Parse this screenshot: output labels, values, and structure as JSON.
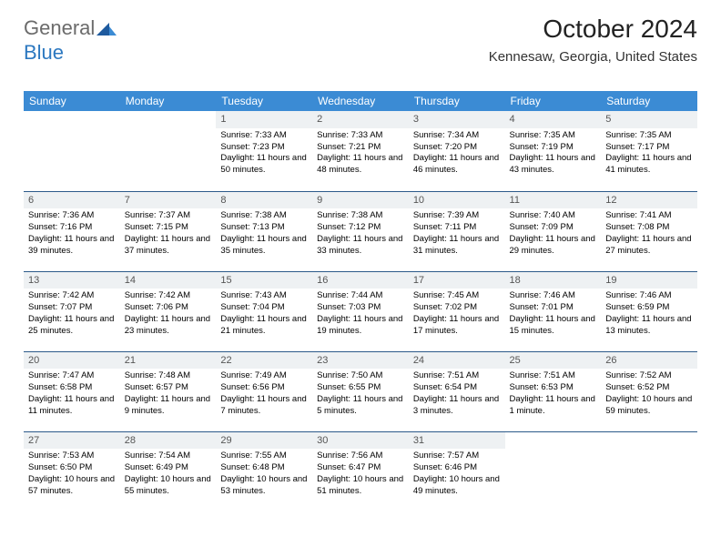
{
  "logo": {
    "part1": "General",
    "part2": "Blue"
  },
  "title": "October 2024",
  "location": "Kennesaw, Georgia, United States",
  "colors": {
    "header_bg": "#3b8bd4",
    "header_text": "#ffffff",
    "daynum_bg": "#eef1f3",
    "row_border": "#2c5a8a",
    "logo_gray": "#6b6b6b",
    "logo_blue": "#2c78c0"
  },
  "day_headers": [
    "Sunday",
    "Monday",
    "Tuesday",
    "Wednesday",
    "Thursday",
    "Friday",
    "Saturday"
  ],
  "weeks": [
    [
      null,
      null,
      {
        "n": "1",
        "sr": "Sunrise: 7:33 AM",
        "ss": "Sunset: 7:23 PM",
        "dl": "Daylight: 11 hours and 50 minutes."
      },
      {
        "n": "2",
        "sr": "Sunrise: 7:33 AM",
        "ss": "Sunset: 7:21 PM",
        "dl": "Daylight: 11 hours and 48 minutes."
      },
      {
        "n": "3",
        "sr": "Sunrise: 7:34 AM",
        "ss": "Sunset: 7:20 PM",
        "dl": "Daylight: 11 hours and 46 minutes."
      },
      {
        "n": "4",
        "sr": "Sunrise: 7:35 AM",
        "ss": "Sunset: 7:19 PM",
        "dl": "Daylight: 11 hours and 43 minutes."
      },
      {
        "n": "5",
        "sr": "Sunrise: 7:35 AM",
        "ss": "Sunset: 7:17 PM",
        "dl": "Daylight: 11 hours and 41 minutes."
      }
    ],
    [
      {
        "n": "6",
        "sr": "Sunrise: 7:36 AM",
        "ss": "Sunset: 7:16 PM",
        "dl": "Daylight: 11 hours and 39 minutes."
      },
      {
        "n": "7",
        "sr": "Sunrise: 7:37 AM",
        "ss": "Sunset: 7:15 PM",
        "dl": "Daylight: 11 hours and 37 minutes."
      },
      {
        "n": "8",
        "sr": "Sunrise: 7:38 AM",
        "ss": "Sunset: 7:13 PM",
        "dl": "Daylight: 11 hours and 35 minutes."
      },
      {
        "n": "9",
        "sr": "Sunrise: 7:38 AM",
        "ss": "Sunset: 7:12 PM",
        "dl": "Daylight: 11 hours and 33 minutes."
      },
      {
        "n": "10",
        "sr": "Sunrise: 7:39 AM",
        "ss": "Sunset: 7:11 PM",
        "dl": "Daylight: 11 hours and 31 minutes."
      },
      {
        "n": "11",
        "sr": "Sunrise: 7:40 AM",
        "ss": "Sunset: 7:09 PM",
        "dl": "Daylight: 11 hours and 29 minutes."
      },
      {
        "n": "12",
        "sr": "Sunrise: 7:41 AM",
        "ss": "Sunset: 7:08 PM",
        "dl": "Daylight: 11 hours and 27 minutes."
      }
    ],
    [
      {
        "n": "13",
        "sr": "Sunrise: 7:42 AM",
        "ss": "Sunset: 7:07 PM",
        "dl": "Daylight: 11 hours and 25 minutes."
      },
      {
        "n": "14",
        "sr": "Sunrise: 7:42 AM",
        "ss": "Sunset: 7:06 PM",
        "dl": "Daylight: 11 hours and 23 minutes."
      },
      {
        "n": "15",
        "sr": "Sunrise: 7:43 AM",
        "ss": "Sunset: 7:04 PM",
        "dl": "Daylight: 11 hours and 21 minutes."
      },
      {
        "n": "16",
        "sr": "Sunrise: 7:44 AM",
        "ss": "Sunset: 7:03 PM",
        "dl": "Daylight: 11 hours and 19 minutes."
      },
      {
        "n": "17",
        "sr": "Sunrise: 7:45 AM",
        "ss": "Sunset: 7:02 PM",
        "dl": "Daylight: 11 hours and 17 minutes."
      },
      {
        "n": "18",
        "sr": "Sunrise: 7:46 AM",
        "ss": "Sunset: 7:01 PM",
        "dl": "Daylight: 11 hours and 15 minutes."
      },
      {
        "n": "19",
        "sr": "Sunrise: 7:46 AM",
        "ss": "Sunset: 6:59 PM",
        "dl": "Daylight: 11 hours and 13 minutes."
      }
    ],
    [
      {
        "n": "20",
        "sr": "Sunrise: 7:47 AM",
        "ss": "Sunset: 6:58 PM",
        "dl": "Daylight: 11 hours and 11 minutes."
      },
      {
        "n": "21",
        "sr": "Sunrise: 7:48 AM",
        "ss": "Sunset: 6:57 PM",
        "dl": "Daylight: 11 hours and 9 minutes."
      },
      {
        "n": "22",
        "sr": "Sunrise: 7:49 AM",
        "ss": "Sunset: 6:56 PM",
        "dl": "Daylight: 11 hours and 7 minutes."
      },
      {
        "n": "23",
        "sr": "Sunrise: 7:50 AM",
        "ss": "Sunset: 6:55 PM",
        "dl": "Daylight: 11 hours and 5 minutes."
      },
      {
        "n": "24",
        "sr": "Sunrise: 7:51 AM",
        "ss": "Sunset: 6:54 PM",
        "dl": "Daylight: 11 hours and 3 minutes."
      },
      {
        "n": "25",
        "sr": "Sunrise: 7:51 AM",
        "ss": "Sunset: 6:53 PM",
        "dl": "Daylight: 11 hours and 1 minute."
      },
      {
        "n": "26",
        "sr": "Sunrise: 7:52 AM",
        "ss": "Sunset: 6:52 PM",
        "dl": "Daylight: 10 hours and 59 minutes."
      }
    ],
    [
      {
        "n": "27",
        "sr": "Sunrise: 7:53 AM",
        "ss": "Sunset: 6:50 PM",
        "dl": "Daylight: 10 hours and 57 minutes."
      },
      {
        "n": "28",
        "sr": "Sunrise: 7:54 AM",
        "ss": "Sunset: 6:49 PM",
        "dl": "Daylight: 10 hours and 55 minutes."
      },
      {
        "n": "29",
        "sr": "Sunrise: 7:55 AM",
        "ss": "Sunset: 6:48 PM",
        "dl": "Daylight: 10 hours and 53 minutes."
      },
      {
        "n": "30",
        "sr": "Sunrise: 7:56 AM",
        "ss": "Sunset: 6:47 PM",
        "dl": "Daylight: 10 hours and 51 minutes."
      },
      {
        "n": "31",
        "sr": "Sunrise: 7:57 AM",
        "ss": "Sunset: 6:46 PM",
        "dl": "Daylight: 10 hours and 49 minutes."
      },
      null,
      null
    ]
  ]
}
